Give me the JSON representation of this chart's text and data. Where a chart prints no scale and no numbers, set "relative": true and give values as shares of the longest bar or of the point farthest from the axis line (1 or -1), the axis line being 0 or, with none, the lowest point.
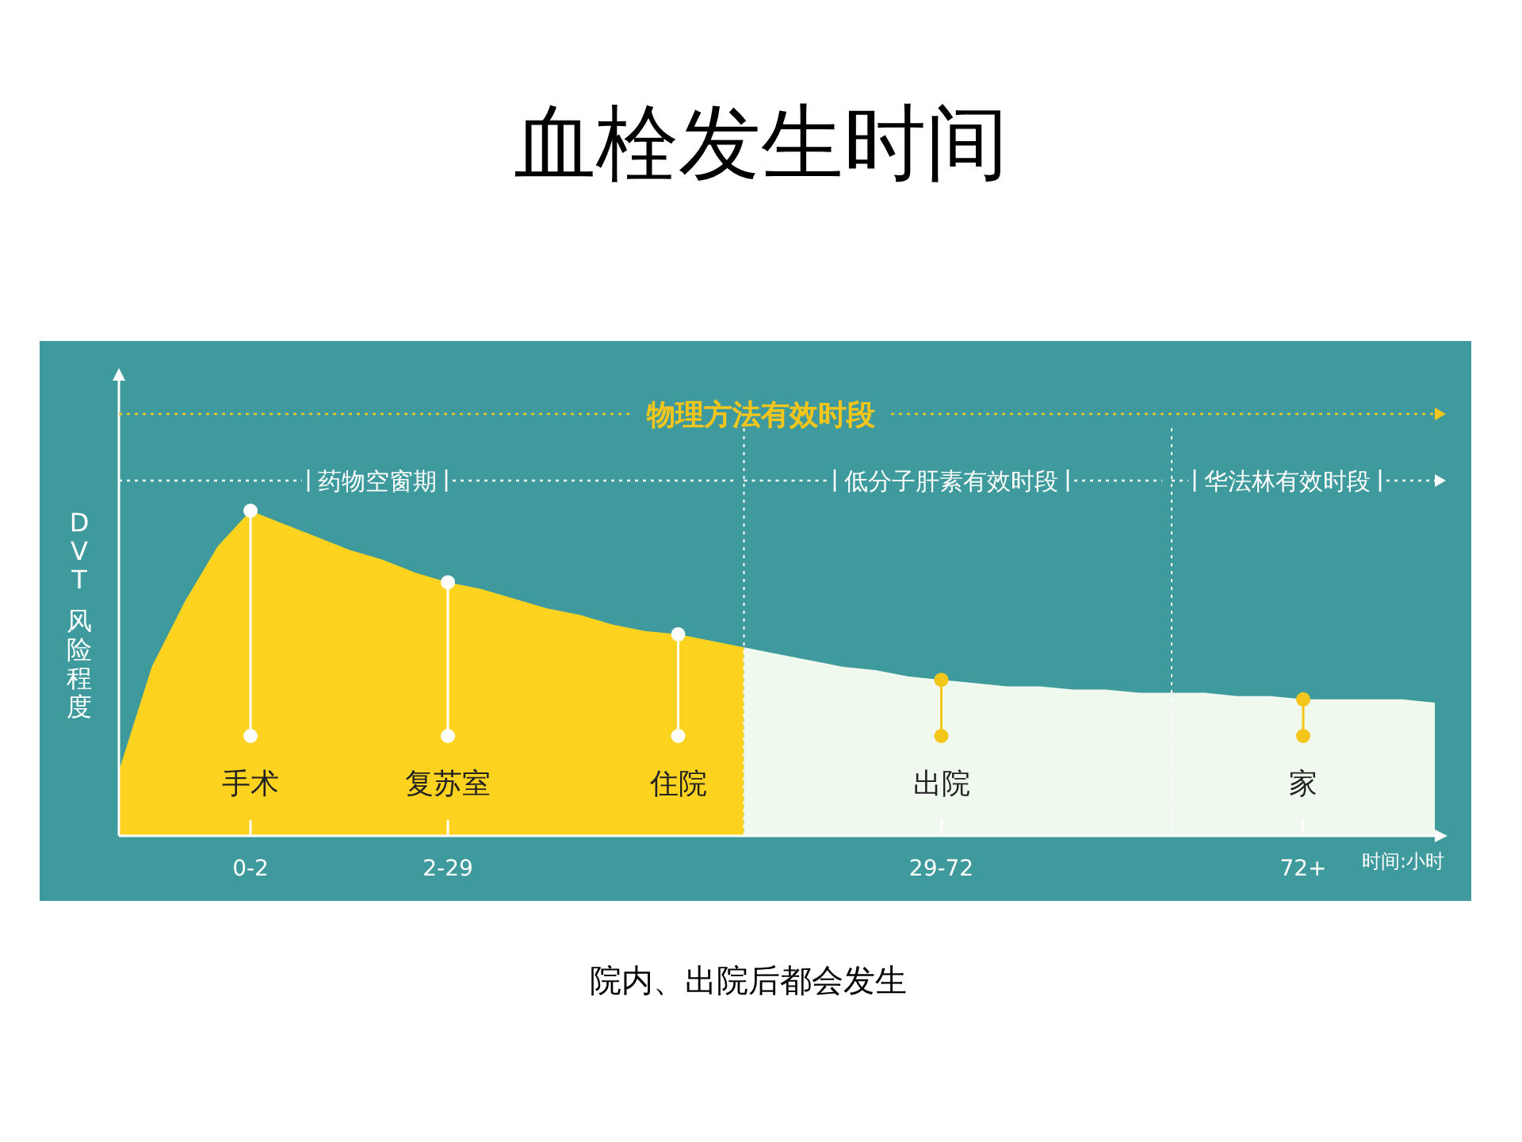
{
  "chart_data": {
    "type": "area",
    "title": "血栓发生时间",
    "ylabel": "DVT 风险程度",
    "xlabel": "时间:小时",
    "relative": true,
    "categories": [
      null,
      null,
      null,
      null,
      "0-2",
      null,
      null,
      null,
      null,
      null,
      "2-29",
      null,
      null,
      null,
      null,
      null,
      null,
      null,
      null,
      null,
      null,
      null,
      null,
      null,
      null,
      "29-72",
      null,
      null,
      null,
      null,
      null,
      null,
      null,
      null,
      null,
      null,
      "72+",
      null,
      null,
      null,
      null
    ],
    "series": [
      {
        "color": "#fdd31f",
        "values": [
          0.2,
          0.52,
          0.72,
          0.89,
          1.0,
          0.96,
          0.92,
          0.88,
          0.85,
          0.81,
          0.78,
          0.76,
          0.73,
          0.7,
          0.68,
          0.65,
          0.63,
          0.62,
          0.6,
          0.58,
          null,
          null,
          null,
          null,
          null,
          null,
          null,
          null,
          null,
          null,
          null,
          null,
          null,
          null,
          null,
          null,
          null,
          null,
          null,
          null,
          null
        ]
      },
      {
        "color": "#f0f9ee",
        "values": [
          null,
          null,
          null,
          null,
          null,
          null,
          null,
          null,
          null,
          null,
          null,
          null,
          null,
          null,
          null,
          null,
          null,
          null,
          null,
          0.58,
          0.56,
          0.54,
          0.52,
          0.51,
          0.49,
          0.48,
          0.47,
          0.46,
          0.46,
          0.45,
          0.45,
          0.44,
          0.44,
          0.44,
          0.43,
          0.43,
          0.42,
          0.42,
          0.42,
          0.42,
          0.41
        ]
      }
    ],
    "annotations": [
      {
        "text": "手术",
        "x": "0-2",
        "y": 1.0
      },
      {
        "text": "复苏室",
        "x": "2-29",
        "y": 0.78
      },
      {
        "text": "住院",
        "y": 0.62
      },
      {
        "text": "出院",
        "x": "29-72",
        "y": 0.48
      },
      {
        "text": "家",
        "x": "72+",
        "y": 0.42
      },
      "物理方法有效时段",
      "药物空窗期",
      "低分子肝素有效时段",
      "华法林有效时段",
      "院内、出院后都会发生"
    ]
  }
}
